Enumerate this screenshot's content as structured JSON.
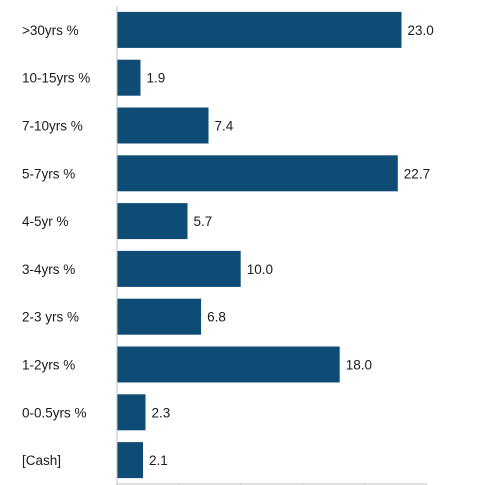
{
  "chart_data": {
    "type": "bar",
    "orientation": "horizontal",
    "categories": [
      ">30yrs %",
      "10-15yrs %",
      "7-10yrs %",
      "5-7yrs %",
      "4-5yr %",
      "3-4yrs %",
      "2-3 yrs %",
      "1-2yrs %",
      "0-0.5yrs %",
      "[Cash]"
    ],
    "values": [
      23.0,
      1.9,
      7.4,
      22.7,
      5.7,
      10.0,
      6.8,
      18.0,
      2.3,
      2.1
    ],
    "value_labels": [
      "23.0",
      "1.9",
      "7.4",
      "22.7",
      "5.7",
      "10.0",
      "6.8",
      "18.0",
      "2.3",
      "2.1"
    ],
    "title": "",
    "xlabel": "",
    "ylabel": "",
    "xlim": [
      0,
      25
    ],
    "grid": false,
    "legend": "none",
    "bar_color": "#0f4c75"
  }
}
